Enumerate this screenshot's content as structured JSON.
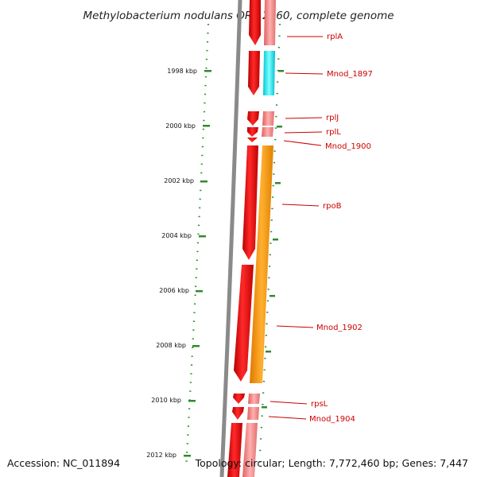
{
  "title": "Methylobacterium nodulans ORS 2060, complete genome",
  "accession": "Accession: NC_011894",
  "topology": "Topology: circular; Length: 7,772,460 bp; Genes: 7,447",
  "scale": {
    "unit": "kbp",
    "ticks": [
      "1998 kbp",
      "2000 kbp",
      "2002 kbp",
      "2004 kbp",
      "2006 kbp",
      "2008 kbp",
      "2010 kbp",
      "2012 kbp"
    ]
  },
  "genes": [
    {
      "name": "rplA",
      "gene_color": "#ee1111",
      "cds_color": "#f08080"
    },
    {
      "name": "Mnod_1897",
      "gene_color": "#ee1111",
      "cds_color": "#00e5f0"
    },
    {
      "name": "rplJ",
      "gene_color": "#ee1111",
      "cds_color": "#f08080"
    },
    {
      "name": "rplL",
      "gene_color": "#ee1111",
      "cds_color": "#f08080"
    },
    {
      "name": "Mnod_1900",
      "gene_color": "#ee1111",
      "cds_color": "#f08080"
    },
    {
      "name": "rpoB",
      "gene_color": "#ee1111",
      "cds_color": "#ff9900"
    },
    {
      "name": "Mnod_1902",
      "gene_color": "#ee1111",
      "cds_color": "#ff9900"
    },
    {
      "name": "rpsL",
      "gene_color": "#ee1111",
      "cds_color": "#f08080"
    },
    {
      "name": "Mnod_1904",
      "gene_color": "#ee1111",
      "cds_color": "#f08080"
    }
  ],
  "colors": {
    "backbone": "#808080",
    "tick": "#2e8b2e",
    "label": "#cc0000"
  }
}
